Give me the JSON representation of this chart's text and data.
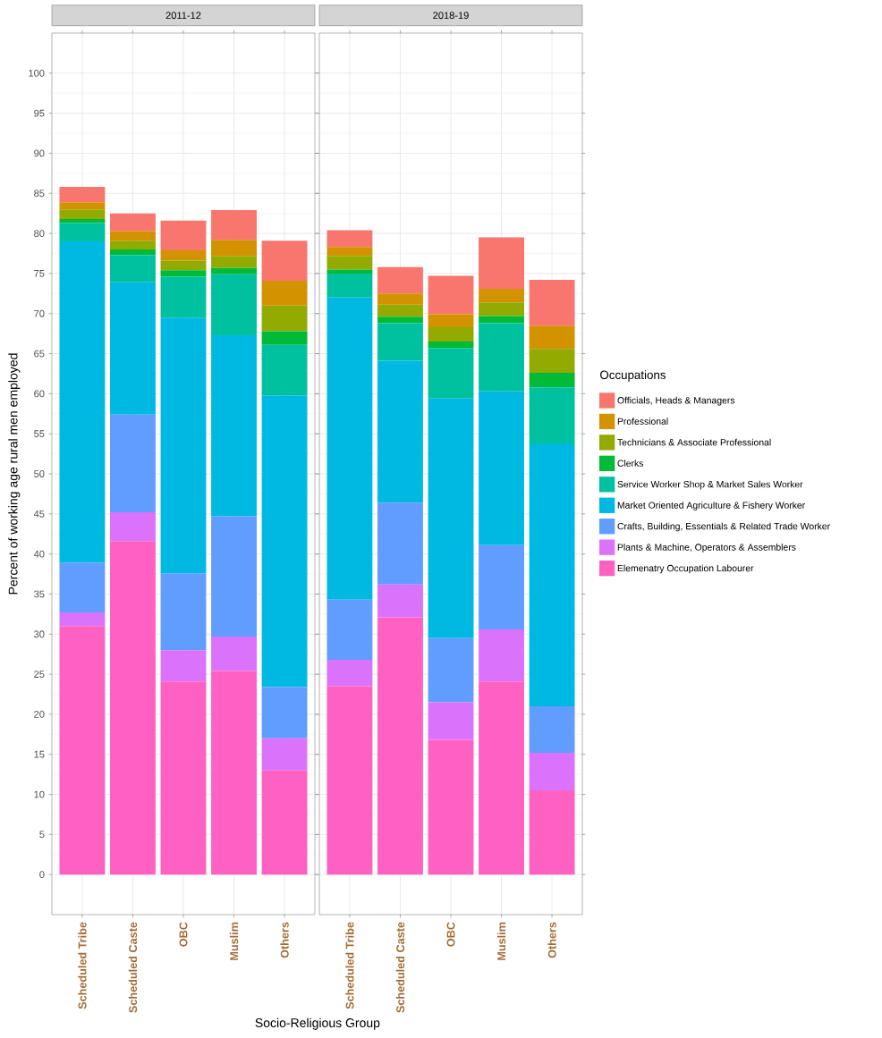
{
  "chart_data": [
    {
      "type": "bar",
      "stacked": true,
      "title": "2011-12",
      "xlabel": "Socio-Religious Group",
      "ylabel": "Percent of working age rural men employed",
      "categories": [
        "Scheduled Tribe",
        "Scheduled Caste",
        "OBC",
        "Muslim",
        "Others"
      ],
      "ylim": [
        -5,
        105
      ],
      "yticks": [
        0,
        5,
        10,
        15,
        20,
        25,
        30,
        35,
        40,
        45,
        50,
        55,
        60,
        65,
        70,
        75,
        80,
        85,
        90,
        95,
        100
      ],
      "grid": true,
      "series": [
        {
          "color": "#ff61c3",
          "values": [
            31.0,
            41.6,
            24.1,
            25.4,
            13.0
          ]
        },
        {
          "color": "#db72fb",
          "values": [
            1.7,
            3.6,
            3.9,
            4.3,
            4.0
          ]
        },
        {
          "color": "#619cff",
          "values": [
            6.2,
            12.2,
            9.6,
            15.0,
            6.4
          ]
        },
        {
          "color": "#00b9e3",
          "values": [
            40.1,
            16.5,
            31.9,
            22.6,
            36.4
          ]
        },
        {
          "color": "#00c19f",
          "values": [
            2.3,
            3.4,
            5.1,
            7.6,
            6.3
          ]
        },
        {
          "color": "#00ba38",
          "values": [
            0.5,
            0.7,
            0.8,
            0.8,
            1.7
          ]
        },
        {
          "color": "#93aa00",
          "values": [
            1.2,
            1.1,
            1.2,
            1.5,
            3.2
          ]
        },
        {
          "color": "#d39200",
          "values": [
            0.9,
            1.2,
            1.3,
            2.0,
            3.1
          ]
        },
        {
          "color": "#f8766d",
          "values": [
            1.9,
            2.2,
            3.7,
            3.7,
            5.0
          ]
        }
      ]
    },
    {
      "type": "bar",
      "stacked": true,
      "title": "2018-19",
      "legend": "right",
      "legend_title": "Occupations",
      "tick_labels": "x",
      "categories": [
        "Scheduled Tribe",
        "Scheduled Caste",
        "OBC",
        "Muslim",
        "Others"
      ],
      "ylim": [
        -5,
        105
      ],
      "yticks": [
        0,
        5,
        10,
        15,
        20,
        25,
        30,
        35,
        40,
        45,
        50,
        55,
        60,
        65,
        70,
        75,
        80,
        85,
        90,
        95,
        100
      ],
      "grid": true,
      "series": [
        {
          "name": "Elemenatry Occupation Labourer",
          "color": "#ff61c3",
          "values": [
            23.5,
            32.1,
            16.8,
            24.1,
            10.5
          ]
        },
        {
          "name": "Plants & Machine, Operators & Assemblers",
          "color": "#db72fb",
          "values": [
            3.3,
            4.1,
            4.7,
            6.5,
            4.7
          ]
        },
        {
          "name": "Crafts, Building, Essentials & Related Trade Worker",
          "color": "#619cff",
          "values": [
            7.5,
            10.2,
            8.0,
            10.5,
            5.8
          ]
        },
        {
          "name": "Market Oriented Agriculture & Fishery Worker",
          "color": "#00b9e3",
          "values": [
            37.7,
            17.7,
            29.9,
            19.2,
            32.8
          ]
        },
        {
          "name": "Service Worker Shop & Market Sales Worker",
          "color": "#00c19f",
          "values": [
            3.0,
            4.7,
            6.3,
            8.5,
            7.0
          ]
        },
        {
          "name": "Clerks",
          "color": "#00ba38",
          "values": [
            0.5,
            0.8,
            0.8,
            0.9,
            1.8
          ]
        },
        {
          "name": "Technicians & Associate Professional",
          "color": "#93aa00",
          "values": [
            1.7,
            1.5,
            1.8,
            1.7,
            3.0
          ]
        },
        {
          "name": "Professional",
          "color": "#d39200",
          "values": [
            1.1,
            1.4,
            1.6,
            1.7,
            2.9
          ]
        },
        {
          "name": "Officials, Heads & Managers",
          "color": "#f8766d",
          "values": [
            2.1,
            3.3,
            4.8,
            6.4,
            5.7
          ]
        }
      ]
    }
  ]
}
